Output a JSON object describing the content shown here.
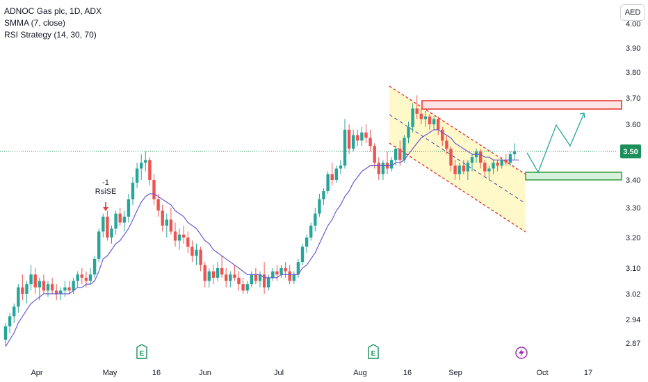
{
  "legend": {
    "title": "ADNOC Gas plc, 1D, ADX",
    "indicator1": "SMMA (7, close)",
    "indicator2": "RSI Strategy (14, 30, 70)"
  },
  "currency_label": "AED",
  "colors": {
    "up": "#26a69a",
    "down": "#ef5350",
    "smma": "#6a5acd",
    "channel_fill": "#fff7c2",
    "channel_line": "#e53935",
    "projection": "#26a69a",
    "last_price": "#1b8f5a"
  },
  "chart_data": {
    "type": "candlestick",
    "y_axis": {
      "ticks": [
        "4.00",
        "3.90",
        "3.80",
        "3.70",
        "3.60",
        "3.50",
        "3.40",
        "3.30",
        "3.20",
        "3.10",
        "3.02",
        "2.94",
        "2.87"
      ]
    },
    "x_axis": {
      "ticks": [
        "Apr",
        "May",
        "16",
        "Jun",
        "Jul",
        "Aug",
        "16",
        "Sep",
        "Oct",
        "17"
      ]
    },
    "last_price": "3.50",
    "signal": {
      "lines": [
        "-1",
        "RsiSE"
      ]
    },
    "event_badges": [
      "E",
      "E",
      "dividend"
    ],
    "candles": [
      [
        2.88,
        2.93,
        2.86,
        2.92
      ],
      [
        2.92,
        2.96,
        2.9,
        2.95
      ],
      [
        2.95,
        2.99,
        2.93,
        2.98
      ],
      [
        2.98,
        3.05,
        2.96,
        3.04
      ],
      [
        3.04,
        3.08,
        3.0,
        3.02
      ],
      [
        3.02,
        3.06,
        2.99,
        3.05
      ],
      [
        3.05,
        3.11,
        3.03,
        3.08
      ],
      [
        3.08,
        3.1,
        3.02,
        3.04
      ],
      [
        3.04,
        3.07,
        3.0,
        3.06
      ],
      [
        3.06,
        3.08,
        3.02,
        3.03
      ],
      [
        3.03,
        3.06,
        3.01,
        3.05
      ],
      [
        3.05,
        3.07,
        3.02,
        3.03
      ],
      [
        3.03,
        3.05,
        3.0,
        3.02
      ],
      [
        3.02,
        3.04,
        3.0,
        3.03
      ],
      [
        3.03,
        3.06,
        3.01,
        3.04
      ],
      [
        3.04,
        3.06,
        3.02,
        3.03
      ],
      [
        3.03,
        3.07,
        3.02,
        3.06
      ],
      [
        3.06,
        3.09,
        3.04,
        3.08
      ],
      [
        3.08,
        3.1,
        3.05,
        3.07
      ],
      [
        3.07,
        3.09,
        3.04,
        3.06
      ],
      [
        3.06,
        3.1,
        3.05,
        3.08
      ],
      [
        3.08,
        3.14,
        3.07,
        3.13
      ],
      [
        3.13,
        3.23,
        3.12,
        3.22
      ],
      [
        3.22,
        3.28,
        3.2,
        3.27
      ],
      [
        3.27,
        3.29,
        3.19,
        3.2
      ],
      [
        3.2,
        3.24,
        3.18,
        3.23
      ],
      [
        3.23,
        3.29,
        3.21,
        3.28
      ],
      [
        3.28,
        3.3,
        3.24,
        3.25
      ],
      [
        3.25,
        3.29,
        3.22,
        3.27
      ],
      [
        3.27,
        3.35,
        3.25,
        3.33
      ],
      [
        3.33,
        3.41,
        3.31,
        3.39
      ],
      [
        3.39,
        3.46,
        3.37,
        3.44
      ],
      [
        3.44,
        3.49,
        3.4,
        3.46
      ],
      [
        3.46,
        3.5,
        3.43,
        3.47
      ],
      [
        3.47,
        3.48,
        3.38,
        3.4
      ],
      [
        3.4,
        3.42,
        3.31,
        3.33
      ],
      [
        3.33,
        3.35,
        3.27,
        3.29
      ],
      [
        3.29,
        3.31,
        3.22,
        3.24
      ],
      [
        3.24,
        3.28,
        3.2,
        3.26
      ],
      [
        3.26,
        3.3,
        3.21,
        3.22
      ],
      [
        3.22,
        3.25,
        3.17,
        3.19
      ],
      [
        3.19,
        3.23,
        3.16,
        3.21
      ],
      [
        3.21,
        3.24,
        3.18,
        3.2
      ],
      [
        3.2,
        3.22,
        3.15,
        3.17
      ],
      [
        3.17,
        3.19,
        3.12,
        3.14
      ],
      [
        3.14,
        3.18,
        3.11,
        3.16
      ],
      [
        3.16,
        3.17,
        3.09,
        3.11
      ],
      [
        3.11,
        3.12,
        3.04,
        3.06
      ],
      [
        3.06,
        3.1,
        3.04,
        3.09
      ],
      [
        3.09,
        3.11,
        3.05,
        3.07
      ],
      [
        3.07,
        3.12,
        3.06,
        3.1
      ],
      [
        3.1,
        3.14,
        3.07,
        3.08
      ],
      [
        3.08,
        3.1,
        3.04,
        3.06
      ],
      [
        3.06,
        3.09,
        3.04,
        3.08
      ],
      [
        3.08,
        3.11,
        3.06,
        3.07
      ],
      [
        3.07,
        3.09,
        3.03,
        3.05
      ],
      [
        3.05,
        3.07,
        3.02,
        3.03
      ],
      [
        3.03,
        3.06,
        3.02,
        3.05
      ],
      [
        3.05,
        3.09,
        3.04,
        3.08
      ],
      [
        3.08,
        3.1,
        3.05,
        3.06
      ],
      [
        3.06,
        3.09,
        3.04,
        3.08
      ],
      [
        3.08,
        3.12,
        3.02,
        3.04
      ],
      [
        3.04,
        3.08,
        3.03,
        3.07
      ],
      [
        3.07,
        3.1,
        3.06,
        3.09
      ],
      [
        3.09,
        3.11,
        3.06,
        3.08
      ],
      [
        3.08,
        3.11,
        3.07,
        3.1
      ],
      [
        3.1,
        3.12,
        3.07,
        3.09
      ],
      [
        3.09,
        3.11,
        3.05,
        3.06
      ],
      [
        3.06,
        3.09,
        3.05,
        3.08
      ],
      [
        3.08,
        3.13,
        3.07,
        3.12
      ],
      [
        3.12,
        3.18,
        3.11,
        3.17
      ],
      [
        3.17,
        3.21,
        3.15,
        3.2
      ],
      [
        3.2,
        3.25,
        3.19,
        3.24
      ],
      [
        3.24,
        3.3,
        3.22,
        3.28
      ],
      [
        3.28,
        3.35,
        3.27,
        3.33
      ],
      [
        3.33,
        3.37,
        3.31,
        3.36
      ],
      [
        3.36,
        3.43,
        3.35,
        3.42
      ],
      [
        3.42,
        3.46,
        3.38,
        3.4
      ],
      [
        3.4,
        3.45,
        3.39,
        3.44
      ],
      [
        3.44,
        3.47,
        3.42,
        3.45
      ],
      [
        3.45,
        3.62,
        3.44,
        3.58
      ],
      [
        3.58,
        3.6,
        3.49,
        3.51
      ],
      [
        3.51,
        3.58,
        3.5,
        3.56
      ],
      [
        3.56,
        3.58,
        3.52,
        3.54
      ],
      [
        3.54,
        3.59,
        3.52,
        3.57
      ],
      [
        3.57,
        3.6,
        3.53,
        3.55
      ],
      [
        3.55,
        3.58,
        3.5,
        3.52
      ],
      [
        3.52,
        3.53,
        3.44,
        3.46
      ],
      [
        3.46,
        3.48,
        3.4,
        3.42
      ],
      [
        3.42,
        3.47,
        3.4,
        3.46
      ],
      [
        3.46,
        3.5,
        3.42,
        3.44
      ],
      [
        3.44,
        3.48,
        3.43,
        3.47
      ],
      [
        3.47,
        3.52,
        3.45,
        3.51
      ],
      [
        3.51,
        3.54,
        3.45,
        3.47
      ],
      [
        3.47,
        3.56,
        3.46,
        3.55
      ],
      [
        3.55,
        3.61,
        3.53,
        3.59
      ],
      [
        3.59,
        3.68,
        3.57,
        3.66
      ],
      [
        3.66,
        3.71,
        3.62,
        3.64
      ],
      [
        3.64,
        3.66,
        3.6,
        3.62
      ],
      [
        3.62,
        3.65,
        3.59,
        3.63
      ],
      [
        3.63,
        3.64,
        3.58,
        3.6
      ],
      [
        3.6,
        3.63,
        3.58,
        3.62
      ],
      [
        3.62,
        3.63,
        3.56,
        3.58
      ],
      [
        3.58,
        3.59,
        3.52,
        3.54
      ],
      [
        3.54,
        3.56,
        3.49,
        3.51
      ],
      [
        3.51,
        3.52,
        3.43,
        3.45
      ],
      [
        3.45,
        3.47,
        3.4,
        3.42
      ],
      [
        3.42,
        3.46,
        3.4,
        3.45
      ],
      [
        3.45,
        3.47,
        3.42,
        3.43
      ],
      [
        3.43,
        3.47,
        3.4,
        3.46
      ],
      [
        3.46,
        3.49,
        3.43,
        3.48
      ],
      [
        3.48,
        3.51,
        3.46,
        3.5
      ],
      [
        3.5,
        3.51,
        3.44,
        3.46
      ],
      [
        3.46,
        3.47,
        3.41,
        3.43
      ],
      [
        3.43,
        3.45,
        3.4,
        3.44
      ],
      [
        3.44,
        3.47,
        3.42,
        3.46
      ],
      [
        3.46,
        3.47,
        3.43,
        3.45
      ],
      [
        3.45,
        3.48,
        3.44,
        3.47
      ],
      [
        3.47,
        3.49,
        3.45,
        3.46
      ],
      [
        3.46,
        3.5,
        3.45,
        3.49
      ],
      [
        3.49,
        3.53,
        3.47,
        3.5
      ]
    ],
    "smma": [
      2.86,
      2.88,
      2.9,
      2.93,
      2.95,
      2.97,
      2.99,
      3.0,
      3.01,
      3.02,
      3.02,
      3.02,
      3.02,
      3.02,
      3.02,
      3.02,
      3.03,
      3.04,
      3.04,
      3.05,
      3.05,
      3.06,
      3.09,
      3.13,
      3.14,
      3.16,
      3.18,
      3.19,
      3.21,
      3.23,
      3.26,
      3.29,
      3.32,
      3.34,
      3.35,
      3.35,
      3.34,
      3.33,
      3.32,
      3.31,
      3.29,
      3.28,
      3.27,
      3.25,
      3.24,
      3.23,
      3.21,
      3.19,
      3.18,
      3.16,
      3.15,
      3.14,
      3.13,
      3.12,
      3.11,
      3.1,
      3.09,
      3.08,
      3.08,
      3.08,
      3.08,
      3.07,
      3.07,
      3.07,
      3.07,
      3.08,
      3.08,
      3.08,
      3.08,
      3.08,
      3.1,
      3.11,
      3.13,
      3.15,
      3.18,
      3.21,
      3.24,
      3.26,
      3.29,
      3.31,
      3.34,
      3.36,
      3.39,
      3.41,
      3.43,
      3.44,
      3.45,
      3.45,
      3.45,
      3.45,
      3.45,
      3.45,
      3.46,
      3.46,
      3.47,
      3.49,
      3.51,
      3.53,
      3.55,
      3.56,
      3.57,
      3.58,
      3.58,
      3.57,
      3.56,
      3.55,
      3.53,
      3.52,
      3.51,
      3.5,
      3.49,
      3.49,
      3.49,
      3.48,
      3.48,
      3.47,
      3.47,
      3.47,
      3.47,
      3.47,
      3.47,
      3.47
    ]
  }
}
